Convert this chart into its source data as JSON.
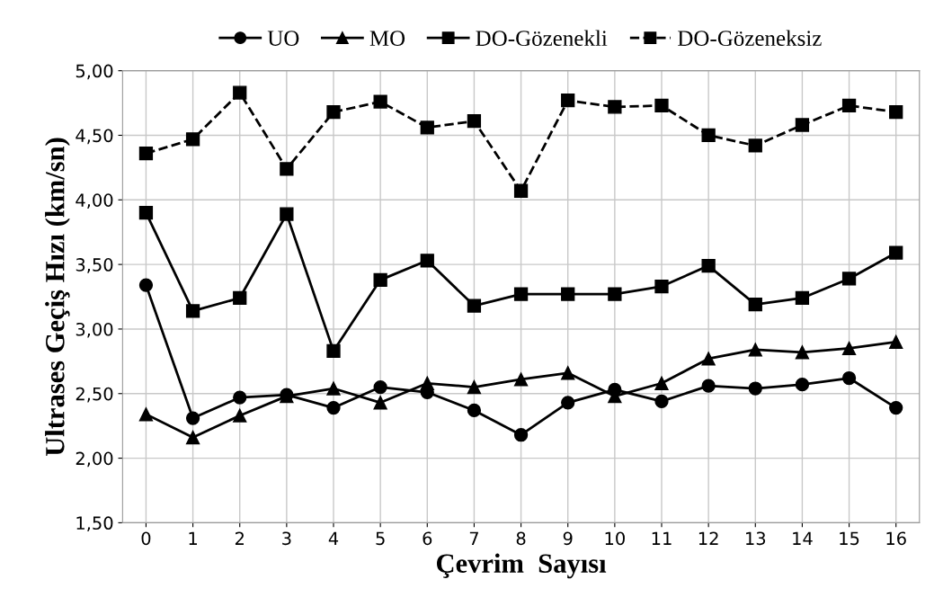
{
  "chart_data": {
    "type": "line",
    "xlabel": "Çevrim  Sayısı",
    "ylabel": "Ultrases Geçiş Hızı (km/sn)",
    "categories": [
      "0",
      "1",
      "2",
      "3",
      "4",
      "5",
      "6",
      "7",
      "8",
      "9",
      "10",
      "11",
      "12",
      "13",
      "14",
      "15",
      "16"
    ],
    "series": [
      {
        "name": "UO",
        "color": "#000000",
        "marker": "circle",
        "line_style": "solid",
        "values": [
          3.34,
          2.31,
          2.47,
          2.49,
          2.39,
          2.55,
          2.51,
          2.37,
          2.18,
          2.43,
          2.53,
          2.44,
          2.56,
          2.54,
          2.57,
          2.62,
          2.39
        ]
      },
      {
        "name": "MO",
        "color": "#000000",
        "marker": "triangle",
        "line_style": "solid",
        "values": [
          2.34,
          2.16,
          2.33,
          2.48,
          2.54,
          2.43,
          2.58,
          2.55,
          2.61,
          2.66,
          2.48,
          2.58,
          2.77,
          2.84,
          2.82,
          2.85,
          2.9
        ]
      },
      {
        "name": "DO-Gözenekli",
        "color": "#000000",
        "marker": "square",
        "line_style": "solid",
        "values": [
          3.9,
          3.14,
          3.24,
          3.89,
          2.83,
          3.38,
          3.53,
          3.18,
          3.27,
          3.27,
          3.27,
          3.33,
          3.49,
          3.19,
          3.24,
          3.39,
          3.59
        ]
      },
      {
        "name": "DO-Gözeneksiz",
        "color": "#000000",
        "marker": "square",
        "line_style": "dashed",
        "values": [
          4.36,
          4.47,
          4.83,
          4.24,
          4.68,
          4.76,
          4.56,
          4.61,
          4.07,
          4.77,
          4.72,
          4.73,
          4.5,
          4.42,
          4.58,
          4.73,
          4.68
        ]
      }
    ],
    "ylim": [
      1.5,
      5.0
    ],
    "yticks": [
      {
        "value": 1.5,
        "label": "1,50"
      },
      {
        "value": 2.0,
        "label": "2,00"
      },
      {
        "value": 2.5,
        "label": "2,50"
      },
      {
        "value": 3.0,
        "label": "3,00"
      },
      {
        "value": 3.5,
        "label": "3,50"
      },
      {
        "value": 4.0,
        "label": "4,00"
      },
      {
        "value": 4.5,
        "label": "4,50"
      },
      {
        "value": 5.0,
        "label": "5,00"
      }
    ],
    "grid": true,
    "legend": "top"
  }
}
